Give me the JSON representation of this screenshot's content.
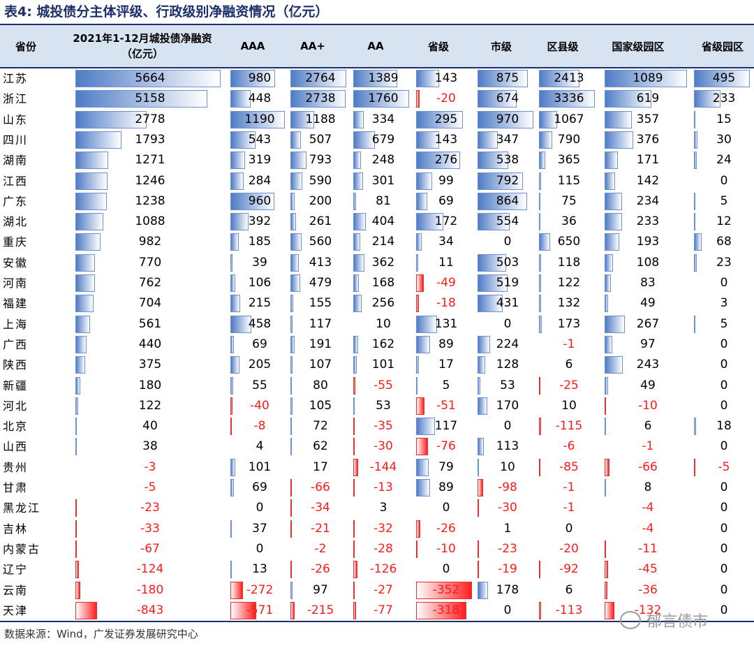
{
  "title": "表4:  城投债分主体评级、行政级别净融资情况（亿元）",
  "headers": {
    "province": "省份",
    "total_line1": "2021年1-12月城投债净融资",
    "total_line2": "（亿元）",
    "aaa": "AAA",
    "aa_plus": "AA+",
    "aa": "AA",
    "prov_level": "省级",
    "city_level": "市级",
    "county_level": "区县级",
    "national_park": "国家级园区",
    "prov_park": "省级园区"
  },
  "rows": [
    {
      "name": "江苏",
      "total": "5664",
      "aaa": "980",
      "aap": "2764",
      "aa": "1389",
      "sj": "143",
      "shi": "875",
      "qx": "2413",
      "gj": "1089",
      "sy": "495"
    },
    {
      "name": "浙江",
      "total": "5158",
      "aaa": "448",
      "aap": "2738",
      "aa": "1760",
      "sj": "-20",
      "shi": "674",
      "qx": "3336",
      "gj": "619",
      "sy": "233"
    },
    {
      "name": "山东",
      "total": "2778",
      "aaa": "1190",
      "aap": "1188",
      "aa": "334",
      "sj": "295",
      "shi": "970",
      "qx": "1067",
      "gj": "357",
      "sy": "15"
    },
    {
      "name": "四川",
      "total": "1793",
      "aaa": "543",
      "aap": "507",
      "aa": "679",
      "sj": "143",
      "shi": "347",
      "qx": "790",
      "gj": "376",
      "sy": "30"
    },
    {
      "name": "湖南",
      "total": "1271",
      "aaa": "319",
      "aap": "793",
      "aa": "248",
      "sj": "276",
      "shi": "538",
      "qx": "365",
      "gj": "171",
      "sy": "24"
    },
    {
      "name": "江西",
      "total": "1246",
      "aaa": "284",
      "aap": "590",
      "aa": "301",
      "sj": "99",
      "shi": "792",
      "qx": "115",
      "gj": "142",
      "sy": "0"
    },
    {
      "name": "广东",
      "total": "1238",
      "aaa": "960",
      "aap": "200",
      "aa": "81",
      "sj": "69",
      "shi": "864",
      "qx": "75",
      "gj": "234",
      "sy": "5"
    },
    {
      "name": "湖北",
      "total": "1088",
      "aaa": "392",
      "aap": "261",
      "aa": "404",
      "sj": "172",
      "shi": "554",
      "qx": "36",
      "gj": "233",
      "sy": "12"
    },
    {
      "name": "重庆",
      "total": "982",
      "aaa": "185",
      "aap": "560",
      "aa": "214",
      "sj": "34",
      "shi": "0",
      "qx": "650",
      "gj": "193",
      "sy": "68"
    },
    {
      "name": "安徽",
      "total": "770",
      "aaa": "39",
      "aap": "413",
      "aa": "362",
      "sj": "11",
      "shi": "503",
      "qx": "118",
      "gj": "108",
      "sy": "23"
    },
    {
      "name": "河南",
      "total": "762",
      "aaa": "106",
      "aap": "479",
      "aa": "168",
      "sj": "-49",
      "shi": "519",
      "qx": "122",
      "gj": "83",
      "sy": "0"
    },
    {
      "name": "福建",
      "total": "704",
      "aaa": "215",
      "aap": "155",
      "aa": "256",
      "sj": "-18",
      "shi": "431",
      "qx": "132",
      "gj": "49",
      "sy": "3"
    },
    {
      "name": "上海",
      "total": "561",
      "aaa": "458",
      "aap": "117",
      "aa": "10",
      "sj": "131",
      "shi": "0",
      "qx": "173",
      "gj": "267",
      "sy": "5"
    },
    {
      "name": "广西",
      "total": "440",
      "aaa": "69",
      "aap": "191",
      "aa": "162",
      "sj": "89",
      "shi": "224",
      "qx": "-1",
      "gj": "97",
      "sy": "0"
    },
    {
      "name": "陕西",
      "total": "375",
      "aaa": "205",
      "aap": "107",
      "aa": "101",
      "sj": "17",
      "shi": "128",
      "qx": "6",
      "gj": "243",
      "sy": "0"
    },
    {
      "name": "新疆",
      "total": "180",
      "aaa": "55",
      "aap": "80",
      "aa": "-55",
      "sj": "5",
      "shi": "53",
      "qx": "-25",
      "gj": "49",
      "sy": "0"
    },
    {
      "name": "河北",
      "total": "122",
      "aaa": "-40",
      "aap": "105",
      "aa": "53",
      "sj": "-51",
      "shi": "170",
      "qx": "10",
      "gj": "-10",
      "sy": "0"
    },
    {
      "name": "北京",
      "total": "40",
      "aaa": "-8",
      "aap": "72",
      "aa": "-35",
      "sj": "117",
      "shi": "0",
      "qx": "-115",
      "gj": "6",
      "sy": "18"
    },
    {
      "name": "山西",
      "total": "38",
      "aaa": "4",
      "aap": "62",
      "aa": "-30",
      "sj": "-76",
      "shi": "113",
      "qx": "-6",
      "gj": "-1",
      "sy": "0"
    },
    {
      "name": "贵州",
      "total": "-3",
      "aaa": "101",
      "aap": "17",
      "aa": "-144",
      "sj": "79",
      "shi": "10",
      "qx": "-85",
      "gj": "-66",
      "sy": "-5"
    },
    {
      "name": "甘肃",
      "total": "-5",
      "aaa": "69",
      "aap": "-66",
      "aa": "-13",
      "sj": "89",
      "shi": "-98",
      "qx": "-1",
      "gj": "8",
      "sy": "0"
    },
    {
      "name": "黑龙江",
      "total": "-23",
      "aaa": "0",
      "aap": "-34",
      "aa": "3",
      "sj": "0",
      "shi": "-30",
      "qx": "-1",
      "gj": "-4",
      "sy": "0"
    },
    {
      "name": "吉林",
      "total": "-33",
      "aaa": "37",
      "aap": "-21",
      "aa": "-32",
      "sj": "-26",
      "shi": "1",
      "qx": "0",
      "gj": "-4",
      "sy": "0"
    },
    {
      "name": "内蒙古",
      "total": "-67",
      "aaa": "0",
      "aap": "-2",
      "aa": "-28",
      "sj": "-10",
      "shi": "-23",
      "qx": "-20",
      "gj": "-11",
      "sy": "0"
    },
    {
      "name": "辽宁",
      "total": "-124",
      "aaa": "13",
      "aap": "-26",
      "aa": "-126",
      "sj": "0",
      "shi": "-19",
      "qx": "-92",
      "gj": "-45",
      "sy": "0"
    },
    {
      "name": "云南",
      "total": "-180",
      "aaa": "-272",
      "aap": "97",
      "aa": "-27",
      "sj": "-352",
      "shi": "178",
      "qx": "6",
      "gj": "-36",
      "sy": "0"
    },
    {
      "name": "天津",
      "total": "-843",
      "aaa": "-571",
      "aap": "-215",
      "aa": "-77",
      "sj": "-318",
      "shi": "0",
      "qx": "-113",
      "gj": "-132",
      "sy": "0"
    }
  ],
  "source": "数据来源：Wind，广发证券发展研究中心",
  "watermark": "郁言债市",
  "colors": {
    "positive_bar": "#4f7cc6",
    "negative_bar": "#ff2020",
    "negative_text": "#ff1a1a",
    "header_bg": "#d8e3f1"
  }
}
